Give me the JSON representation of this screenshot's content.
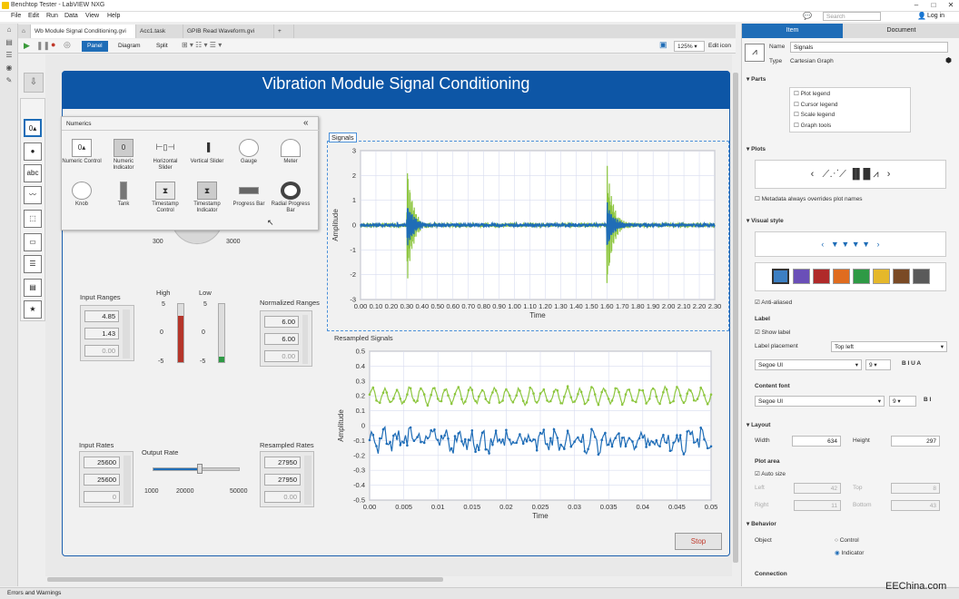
{
  "window": {
    "title": "Benchtop Tester - LabVIEW NXG"
  },
  "menu": [
    "File",
    "Edit",
    "Run",
    "Data",
    "View",
    "Help"
  ],
  "tabs": [
    "Wb Module Signal Conditioning.gvi",
    "Acc1.task",
    "GPIB Read Waveform.gvi",
    "+"
  ],
  "toolbar": {
    "panel": "Panel",
    "diagram": "Diagram",
    "split": "Split",
    "zoom": "125%",
    "edit_icon": "Edit icon"
  },
  "top_right": {
    "search_placeholder": "Search",
    "login": "Log in"
  },
  "banner": {
    "title": "Vibration Module Signal Conditioning"
  },
  "palette": {
    "title": "Numerics",
    "collapse": "«",
    "items": [
      "Numeric Control",
      "Numeric Indicator",
      "Horizontal Slider",
      "Vertical Slider",
      "Gauge",
      "Meter",
      "Knob",
      "Tank",
      "Timestamp Control",
      "Timestamp Indicator",
      "Progress Bar",
      "Radial Progress Bar"
    ]
  },
  "knob": {
    "min": "300",
    "max": "3000"
  },
  "input_ranges": {
    "label": "Input Ranges",
    "values": [
      "4.85",
      "1.43",
      "0.00"
    ]
  },
  "high": {
    "label": "High",
    "ticks": [
      "5",
      "0",
      "-5"
    ],
    "level": 0.8
  },
  "low": {
    "label": "Low",
    "ticks": [
      "5",
      "0",
      "-5"
    ],
    "level": 0.1
  },
  "normalized_ranges": {
    "label": "Normalized Ranges",
    "values": [
      "6.00",
      "6.00",
      "0.00"
    ]
  },
  "input_rates": {
    "label": "Input Rates",
    "values": [
      "25600",
      "25600",
      "0"
    ]
  },
  "output_rate": {
    "label": "Output Rate",
    "ticks": [
      "1000",
      "20000",
      "50000"
    ],
    "value": 27950
  },
  "resampled_rates": {
    "label": "Resampled Rates",
    "values": [
      "27950",
      "27950",
      "0.00"
    ]
  },
  "stop": {
    "label": "Stop"
  },
  "chart_data": [
    {
      "type": "line",
      "title": "Signals",
      "xlabel": "Time",
      "ylabel": "Amplitude",
      "xlim": [
        0,
        2.3
      ],
      "ylim": [
        -3,
        3
      ],
      "xticks": [
        "0.00",
        "0.10",
        "0.20",
        "0.30",
        "0.40",
        "0.50",
        "0.60",
        "0.70",
        "0.80",
        "0.90",
        "1.00",
        "1.10",
        "1.20",
        "1.30",
        "1.40",
        "1.50",
        "1.60",
        "1.70",
        "1.80",
        "1.90",
        "2.00",
        "2.10",
        "2.20",
        "2.30"
      ],
      "yticks": [
        "3",
        "2",
        "1",
        "0",
        "-1",
        "-2",
        "-3"
      ],
      "series": [
        {
          "color": "#8dc63f",
          "x": [
            0,
            0.28,
            0.3,
            0.31,
            0.32,
            0.33,
            0.35,
            0.4,
            0.5,
            1.58,
            1.6,
            1.61,
            1.62,
            1.64,
            1.7,
            2.3
          ],
          "y": [
            0,
            0,
            2,
            -2.5,
            1.2,
            -0.9,
            0.4,
            0.1,
            0,
            0,
            2.6,
            -2.3,
            1.0,
            -0.5,
            0.1,
            0
          ]
        },
        {
          "color": "#1f6db7",
          "x": [
            0,
            0.28,
            0.3,
            0.31,
            0.33,
            0.36,
            0.45,
            1.58,
            1.6,
            1.61,
            1.63,
            1.67,
            1.75,
            2.3
          ],
          "y": [
            0,
            0,
            0.8,
            -0.8,
            0.4,
            -0.2,
            0,
            0,
            0.9,
            -0.9,
            0.4,
            -0.2,
            0,
            0
          ]
        }
      ]
    },
    {
      "type": "line",
      "title": "Resampled Signals",
      "xlabel": "Time",
      "ylabel": "Amplitude",
      "xlim": [
        0,
        0.05
      ],
      "ylim": [
        -0.5,
        0.5
      ],
      "xticks": [
        "0.00",
        "0.005",
        "0.01",
        "0.015",
        "0.02",
        "0.025",
        "0.03",
        "0.035",
        "0.04",
        "0.045",
        "0.05"
      ],
      "yticks": [
        "0.5",
        "0.4",
        "0.3",
        "0.2",
        "0.1",
        "0",
        "-0.1",
        "-0.2",
        "-0.3",
        "-0.4",
        "-0.5"
      ],
      "series": [
        {
          "color": "#8dc63f",
          "mean": 0.2,
          "amp": 0.05,
          "noise": 0.03
        },
        {
          "color": "#1f6db7",
          "mean": -0.1,
          "amp": 0.04,
          "noise": 0.12
        }
      ]
    }
  ],
  "props": {
    "tab_item": "Item",
    "tab_document": "Document",
    "name_label": "Name",
    "name_value": "Signals",
    "type_label": "Type",
    "type_value": "Cartesian Graph",
    "parts": "Parts",
    "parts_items": [
      "Plot legend",
      "Cursor legend",
      "Scale legend",
      "Graph tools"
    ],
    "plots": "Plots",
    "metadata": "Metadata always overrides plot names",
    "visual_style": "Visual style",
    "anti_aliased": "Anti-aliased",
    "swatch_colors": [
      "#3c7fc3",
      "#6a4fb8",
      "#b02a2a",
      "#e06c1f",
      "#2e9a45",
      "#e5b82b",
      "#7a4a25",
      "#5a5a5a"
    ],
    "label": "Label",
    "show_label": "Show label",
    "label_placement": "Label placement",
    "placement_value": "Top left",
    "font1": "Segoe UI",
    "size1": "9",
    "content_font": "Content font",
    "font2": "Segoe UI",
    "size2": "9",
    "layout": "Layout",
    "width_label": "Width",
    "width_value": "634",
    "height_label": "Height",
    "height_value": "297",
    "plot_area": "Plot area",
    "auto_size": "Auto size",
    "left": "Left",
    "left_v": "42",
    "top": "Top",
    "top_v": "8",
    "right": "Right",
    "right_v": "11",
    "bottom": "Bottom",
    "bottom_v": "43",
    "behavior": "Behavior",
    "object": "Object",
    "control": "Control",
    "indicator": "Indicator",
    "connection": "Connection"
  },
  "status": {
    "errors": "Errors and Warnings",
    "watermark": "EEChina.com"
  }
}
